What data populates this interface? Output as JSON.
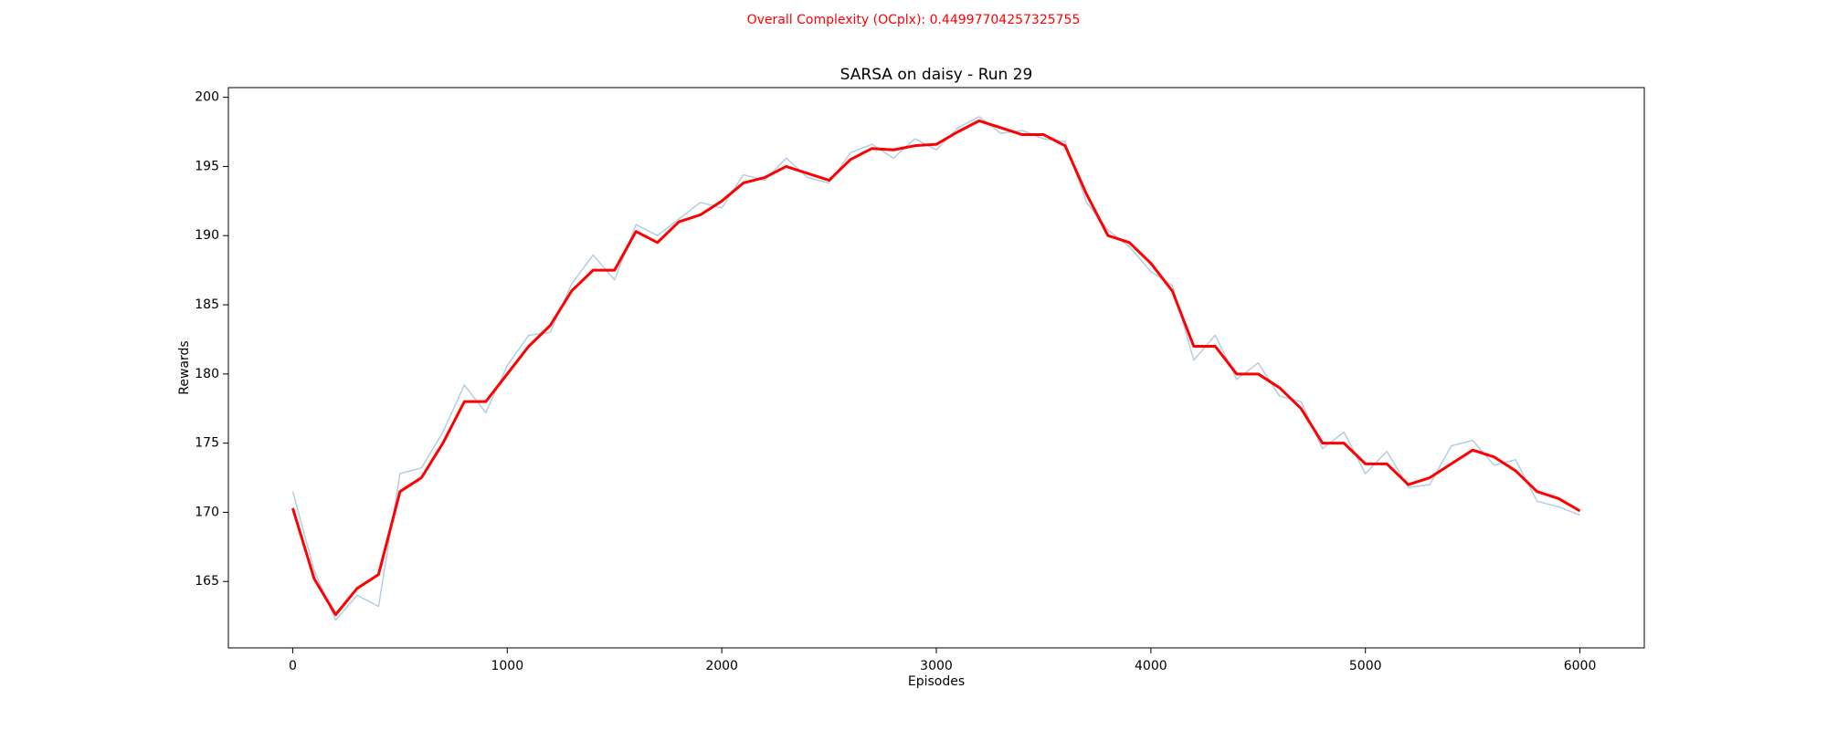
{
  "chart_data": {
    "type": "line",
    "suptitle": "Overall Complexity (OCplx): 0.44997704257325755",
    "suptitle_color": "#ff0000",
    "title": "SARSA on daisy - Run 29",
    "xlabel": "Episodes",
    "ylabel": "Rewards",
    "x": [
      0,
      100,
      200,
      300,
      400,
      500,
      600,
      700,
      800,
      900,
      1000,
      1100,
      1200,
      1300,
      1400,
      1500,
      1600,
      1700,
      1800,
      1900,
      2000,
      2100,
      2200,
      2300,
      2400,
      2500,
      2600,
      2700,
      2800,
      2900,
      3000,
      3100,
      3200,
      3300,
      3400,
      3500,
      3600,
      3700,
      3800,
      3900,
      4000,
      4100,
      4200,
      4300,
      4400,
      4500,
      4600,
      4700,
      4800,
      4900,
      5000,
      5100,
      5200,
      5300,
      5400,
      5500,
      5600,
      5700,
      5800,
      5900,
      6000
    ],
    "series": [
      {
        "color": "#b3cde3",
        "width": 1.5,
        "values": [
          171.5,
          165.8,
          162.2,
          164.0,
          163.2,
          172.8,
          173.2,
          175.8,
          179.2,
          177.2,
          180.6,
          182.8,
          183.0,
          186.5,
          188.6,
          186.8,
          190.8,
          190.0,
          191.2,
          192.4,
          192.0,
          194.4,
          194.0,
          195.6,
          194.2,
          193.8,
          196.0,
          196.6,
          195.6,
          197.0,
          196.2,
          197.8,
          198.6,
          197.4,
          197.6,
          197.0,
          196.8,
          192.4,
          190.4,
          189.2,
          187.4,
          186.4,
          181.0,
          182.8,
          179.6,
          180.8,
          178.4,
          178.0,
          174.6,
          175.8,
          172.8,
          174.4,
          171.8,
          172.0,
          174.8,
          175.2,
          173.4,
          173.8,
          170.8,
          170.4,
          169.8
        ]
      },
      {
        "color": "#ff0000",
        "width": 3,
        "values": [
          170.3,
          165.2,
          162.6,
          164.5,
          165.5,
          171.5,
          172.5,
          175.0,
          178.0,
          178.0,
          180.0,
          182.0,
          183.5,
          186.0,
          187.5,
          187.5,
          190.3,
          189.5,
          191.0,
          191.5,
          192.5,
          193.8,
          194.2,
          195.0,
          194.5,
          194.0,
          195.5,
          196.3,
          196.2,
          196.5,
          196.6,
          197.5,
          198.3,
          197.8,
          197.3,
          197.3,
          196.5,
          193.0,
          190.0,
          189.5,
          188.0,
          186.0,
          182.0,
          182.0,
          180.0,
          180.0,
          179.0,
          177.5,
          175.0,
          175.0,
          173.5,
          173.5,
          172.0,
          172.5,
          173.5,
          174.5,
          174.0,
          173.0,
          171.5,
          171.0,
          170.1
        ]
      }
    ],
    "xlim": [
      -300,
      6300
    ],
    "ylim": [
      160.2,
      200.7
    ],
    "xticks": [
      0,
      1000,
      2000,
      3000,
      4000,
      5000,
      6000
    ],
    "yticks": [
      165,
      170,
      175,
      180,
      185,
      190,
      195,
      200
    ],
    "grid": false
  }
}
